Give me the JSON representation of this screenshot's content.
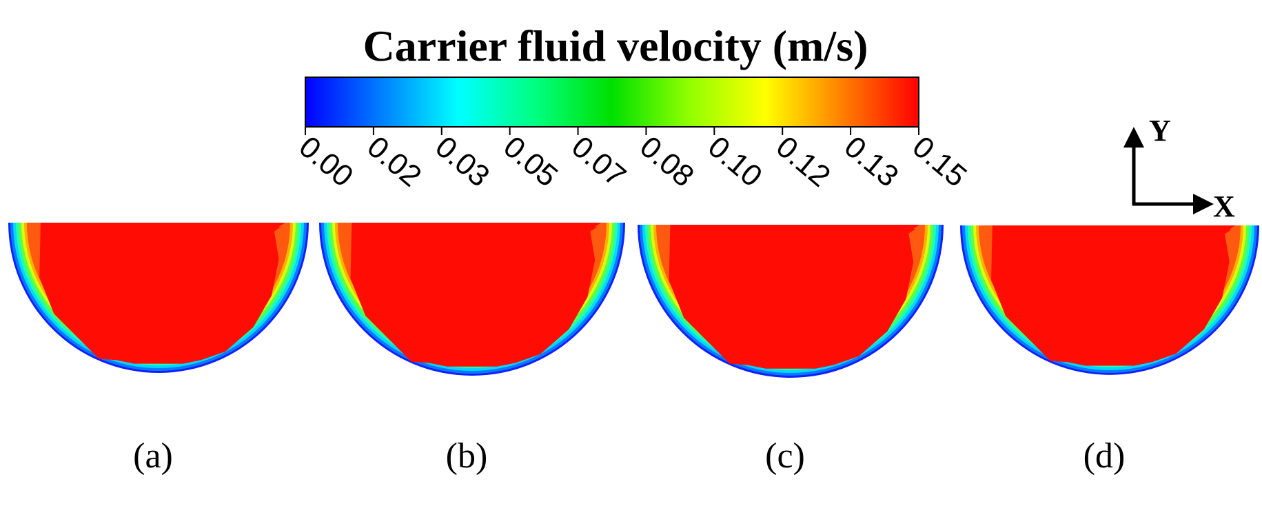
{
  "colorbar": {
    "title": "Carrier fluid velocity (m/s)",
    "ticks": [
      "0.00",
      "0.02",
      "0.03",
      "0.05",
      "0.07",
      "0.08",
      "0.10",
      "0.12",
      "0.13",
      "0.15"
    ],
    "min": 0.0,
    "max": 0.15,
    "colormap": [
      "#0000ff",
      "#0080ff",
      "#00ffff",
      "#00ff80",
      "#00ff00",
      "#80ff00",
      "#ffff00",
      "#ff8000",
      "#ff0000"
    ]
  },
  "axes": {
    "y_label": "Y",
    "x_label": "X"
  },
  "panels": [
    {
      "label": "(a)"
    },
    {
      "label": "(b)"
    },
    {
      "label": "(c)"
    },
    {
      "label": "(d)"
    }
  ],
  "colors": {
    "core": "#ff0d05",
    "wall": "#1e64ff"
  }
}
